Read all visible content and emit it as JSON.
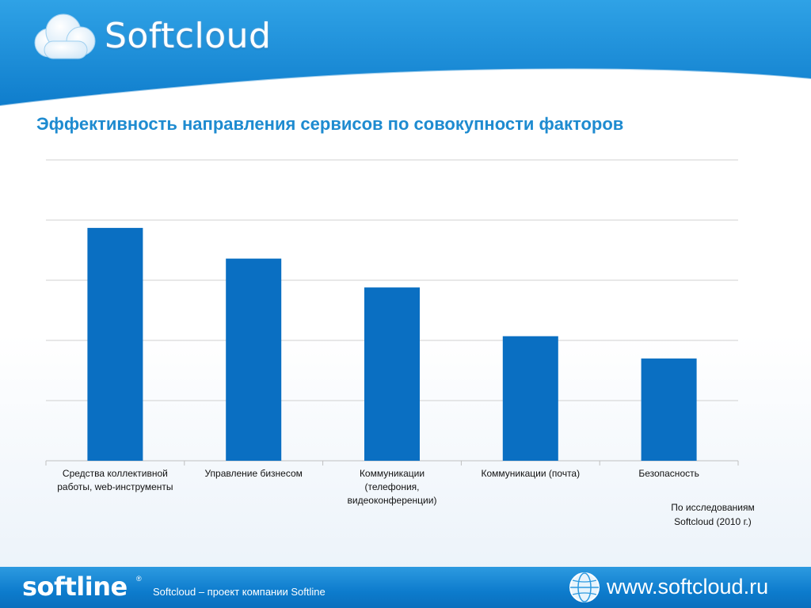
{
  "header": {
    "brand_name": "Softcloud",
    "brand_icon": "cloud-icon"
  },
  "slide": {
    "title": "Эффективность направления сервисов по совокупности факторов",
    "source_note_line1": "По исследованиям",
    "source_note_line2": "Softcloud (2010  г.)"
  },
  "chart_data": {
    "type": "bar",
    "categories": [
      [
        "Средства коллективной",
        "работы, web-инструменты"
      ],
      [
        "Управление бизнесом"
      ],
      [
        "Коммуникации",
        "(телефония,",
        "видеоконференции)"
      ],
      [
        "Коммуникации (почта)"
      ],
      [
        "Безопасность"
      ]
    ],
    "values": [
      3.87,
      3.36,
      2.88,
      2.07,
      1.7
    ],
    "ylim": [
      0,
      5
    ],
    "gridlines": 5,
    "bar_color": "#0a6fc2",
    "grid": true,
    "xlabel": "",
    "ylabel": ""
  },
  "footer": {
    "logo_text": "softline",
    "reg_mark": "®",
    "caption": "Softcloud – проект компании Softline",
    "url": "www.softcloud.ru",
    "globe_icon": "globe-icon"
  },
  "colors": {
    "header_blue": "#1a8bd6",
    "title_blue": "#1e8bd0",
    "footer_blue": "#0d7ccd"
  }
}
